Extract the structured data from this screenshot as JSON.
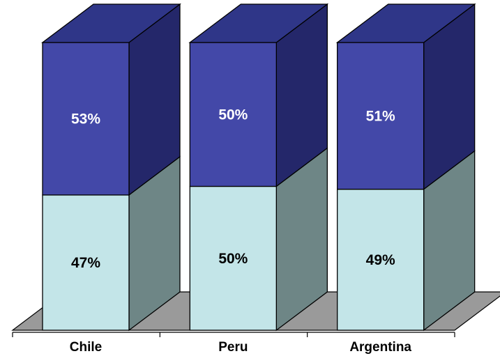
{
  "chart_data": {
    "type": "bar",
    "stacked": true,
    "percent_stacked": true,
    "three_d": true,
    "categories": [
      "Chile",
      "Peru",
      "Argentina"
    ],
    "series": [
      {
        "values": [
          47,
          50,
          49
        ],
        "labels": [
          "47%",
          "50%",
          "49%"
        ]
      },
      {
        "values": [
          53,
          50,
          51
        ],
        "labels": [
          "53%",
          "50%",
          "51%"
        ]
      }
    ],
    "ylim": [
      0,
      100
    ],
    "title": "",
    "xlabel": "",
    "ylabel": "",
    "grid": false,
    "legend": "none"
  },
  "colors": {
    "lower_front": "#c3e5e8",
    "lower_side": "#6e8686",
    "upper_front": "#4348a8",
    "upper_side": "#24276a",
    "upper_top": "#2f3688",
    "floor": "#9a9a9a",
    "upper_label": "#ffffff",
    "lower_label": "#000000"
  }
}
